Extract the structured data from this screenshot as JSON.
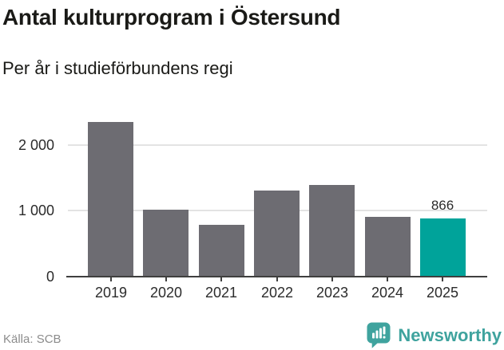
{
  "header": {
    "title": "Antal kulturprogram i Östersund",
    "subtitle": "Per år i studieförbundens regi"
  },
  "chart_data": {
    "type": "bar",
    "title": "Antal kulturprogram i Östersund",
    "subtitle": "Per år i studieförbundens regi",
    "categories": [
      "2019",
      "2020",
      "2021",
      "2022",
      "2023",
      "2024",
      "2025"
    ],
    "values": [
      2330,
      1005,
      780,
      1290,
      1375,
      900,
      866
    ],
    "highlight_index": 6,
    "data_labels": [
      null,
      null,
      null,
      null,
      null,
      null,
      "866"
    ],
    "yticks": [
      {
        "value": 0,
        "label": "0"
      },
      {
        "value": 1000,
        "label": "1 000"
      },
      {
        "value": 2000,
        "label": "2 000"
      }
    ],
    "ylim": [
      0,
      2625
    ],
    "xlabel": "",
    "ylabel": "",
    "grid": "horizontal-light",
    "legend": "none",
    "colors": {
      "bar_default": "#6d6c72",
      "bar_highlight": "#00a39a"
    }
  },
  "footer": {
    "source": "Källa: SCB",
    "brand": "Newsworthy"
  },
  "colors": {
    "accent_teal": "#00a39a",
    "logo_teal": "#3fa39e",
    "bar_gray": "#6d6c72",
    "text_dark": "#1a1a17",
    "axis_text": "#2b2b2b",
    "muted_text": "#8c8c8c",
    "gridline": "#e3e3e3",
    "axis_line": "#3f3f3f"
  }
}
